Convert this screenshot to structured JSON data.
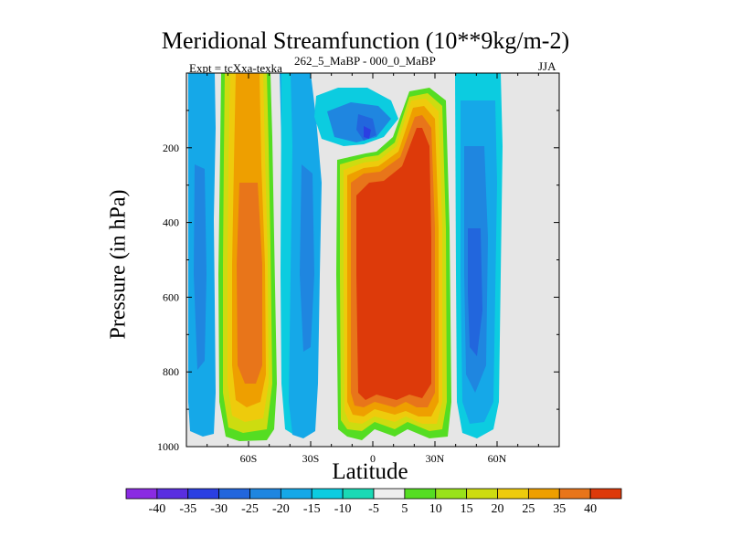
{
  "title": "Meridional Streamfunction (10**9kg/m-2)",
  "subtitle_left": "Expt = tcXxa-texka",
  "subtitle_center": "262_5_MaBP - 000_0_MaBP",
  "subtitle_right": "JJA",
  "chart_data": {
    "type": "contour",
    "title": "Meridional Streamfunction (10**9kg/m-2)",
    "xlabel": "Latitude",
    "ylabel": "Pressure (in hPa)",
    "x_ticks": [
      {
        "value": -60,
        "label": "60S"
      },
      {
        "value": -30,
        "label": "30S"
      },
      {
        "value": 0,
        "label": "0"
      },
      {
        "value": 30,
        "label": "30N"
      },
      {
        "value": 60,
        "label": "60N"
      }
    ],
    "y_ticks": [
      {
        "value": 200,
        "label": "200"
      },
      {
        "value": 400,
        "label": "400"
      },
      {
        "value": 600,
        "label": "600"
      },
      {
        "value": 800,
        "label": "800"
      },
      {
        "value": 1000,
        "label": "1000"
      }
    ],
    "xlim": [
      -90,
      90
    ],
    "ylim": [
      1000,
      0
    ],
    "missing_color": "#e6e6e6",
    "colorbar": {
      "levels": [
        -40,
        -35,
        -30,
        -25,
        -20,
        -15,
        -10,
        -5,
        5,
        10,
        15,
        20,
        25,
        35,
        40
      ],
      "level_labels": [
        "-40",
        "-35",
        "-30",
        "-25",
        "-20",
        "-15",
        "-10",
        "-5",
        "5",
        "10",
        "15",
        "20",
        "25",
        "35",
        "40"
      ],
      "colors": [
        "#8a2be2",
        "#5a2ee0",
        "#2b3fe2",
        "#2266dd",
        "#1f86e0",
        "#15a8e8",
        "#0ccce0",
        "#1ad9b5",
        "#eeeeee",
        "#55dd22",
        "#99e21a",
        "#cddc10",
        "#eecb0c",
        "#ee9f00",
        "#e8751a",
        "#dd3a0a"
      ]
    }
  }
}
